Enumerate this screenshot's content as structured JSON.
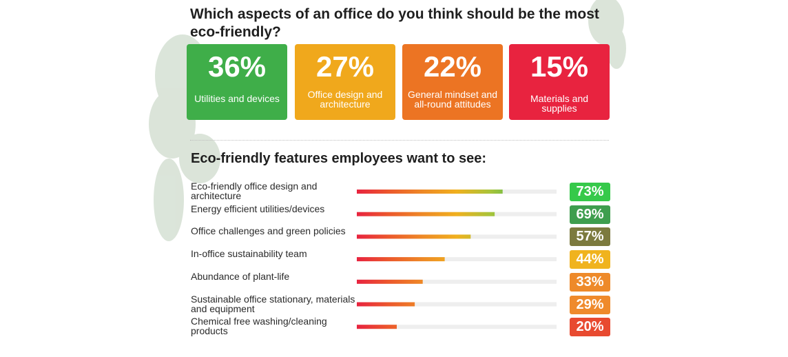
{
  "header": {
    "question": "Which aspects of an office do you think should be the most eco-friendly?"
  },
  "aspects": [
    {
      "percent": "36%",
      "label": "Utilities and devices",
      "color": "#3fae49"
    },
    {
      "percent": "27%",
      "label": "Office design and architecture",
      "color": "#f0a81c"
    },
    {
      "percent": "22%",
      "label": "General mindset and all-round attitudes",
      "color": "#ec7423"
    },
    {
      "percent": "15%",
      "label": "Materials and supplies",
      "color": "#e8233f"
    }
  ],
  "features": {
    "title": "Eco-friendly features employees want to see:"
  },
  "chart_data": {
    "type": "bar",
    "orientation": "horizontal",
    "title": "Eco-friendly features employees want to see:",
    "categories": [
      "Eco-friendly office design and architecture",
      "Energy efficient utilities/devices",
      "Office challenges and green policies",
      "In-office sustainability team",
      "Abundance of plant-life",
      "Sustainable office stationary, materials and equipment",
      "Chemical free washing/cleaning products"
    ],
    "values": [
      73,
      69,
      57,
      44,
      33,
      29,
      20
    ],
    "value_labels": [
      "73%",
      "69%",
      "57%",
      "44%",
      "33%",
      "29%",
      "20%"
    ],
    "badge_colors": [
      "#36c94a",
      "#3e9e4e",
      "#7c7a3e",
      "#f0b31e",
      "#ee8a2a",
      "#ef8a2c",
      "#e84a30"
    ],
    "bar_gradient": [
      "#e8233f",
      "#ec5a2c",
      "#ee8a26",
      "#f0b01e",
      "#a9c43a",
      "#4cb953",
      "#3fd36a"
    ],
    "xlim": [
      0,
      100
    ],
    "grid": false
  }
}
